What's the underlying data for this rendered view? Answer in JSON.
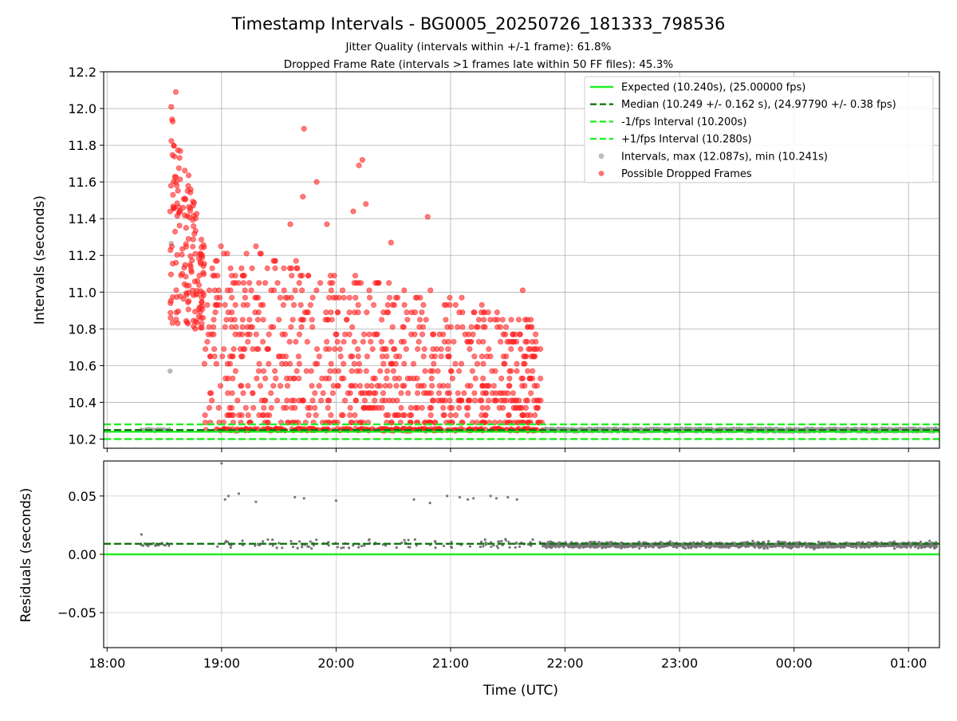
{
  "chart_data": {
    "type": "scatter",
    "title": "Timestamp Intervals - BG0005_20250726_181333_798536",
    "subtitle_lines": [
      "Jitter Quality (intervals within +/-1 frame): 61.8%",
      "Dropped Frame Rate (intervals >1 frames late within 50 FF files): 45.3%"
    ],
    "xlabel": "Time (UTC)",
    "x_tick_labels": [
      "18:00",
      "19:00",
      "20:00",
      "21:00",
      "22:00",
      "23:00",
      "00:00",
      "01:00"
    ],
    "x_tick_hours": [
      18,
      19,
      20,
      21,
      22,
      23,
      24,
      25
    ],
    "xlim_hours": [
      17.97,
      25.27
    ],
    "grid": true,
    "top_panel": {
      "ylabel": "Intervals (seconds)",
      "ylim": [
        10.15,
        12.2
      ],
      "y_ticks": [
        10.2,
        10.4,
        10.6,
        10.8,
        11.0,
        11.2,
        11.4,
        11.6,
        11.8,
        12.0,
        12.2
      ],
      "y_tick_labels": [
        "10.2",
        "10.4",
        "10.6",
        "10.8",
        "11.0",
        "11.2",
        "11.4",
        "11.6",
        "11.8",
        "12.0",
        "12.2"
      ],
      "legend_position": "top-right",
      "reference_lines": [
        {
          "label": "Expected (10.240s), (25.00000 fps)",
          "y": 10.24,
          "color": "#22ee22",
          "style": "solid"
        },
        {
          "label": "Median (10.249 +/- 0.162 s), (24.97790 +/- 0.38 fps)",
          "y": 10.249,
          "color": "#117711",
          "style": "dashed"
        },
        {
          "label": "-1/fps Interval (10.200s)",
          "y": 10.2,
          "color": "#22ee22",
          "style": "dashed"
        },
        {
          "label": "+1/fps Interval (10.280s)",
          "y": 10.28,
          "color": "#22ee22",
          "style": "dashed"
        }
      ],
      "scatter_series": [
        {
          "label": "Intervals, max (12.087s), min (10.241s)",
          "color": "#999999",
          "max": 12.087,
          "min": 10.241
        },
        {
          "label": "Possible Dropped Frames",
          "color": "#ff2222"
        }
      ]
    },
    "bottom_panel": {
      "ylabel": "Residuals (seconds)",
      "ylim": [
        -0.08,
        0.08
      ],
      "y_ticks": [
        -0.05,
        0.0,
        0.05
      ],
      "y_tick_labels": [
        "−0.05",
        "0.00",
        "0.05"
      ],
      "reference_lines": [
        {
          "y": 0.0,
          "color": "#22ee22",
          "style": "solid"
        },
        {
          "y": 0.009,
          "color": "#117711",
          "style": "dashed"
        }
      ],
      "series_color": "#777777"
    },
    "dropped_frame_clusters_approx": [
      {
        "x_range_hours": [
          18.55,
          18.85
        ],
        "y_range": [
          10.8,
          12.09
        ]
      },
      {
        "x_range_hours": [
          18.85,
          21.8
        ],
        "y_range": [
          10.25,
          11.9
        ]
      }
    ]
  }
}
